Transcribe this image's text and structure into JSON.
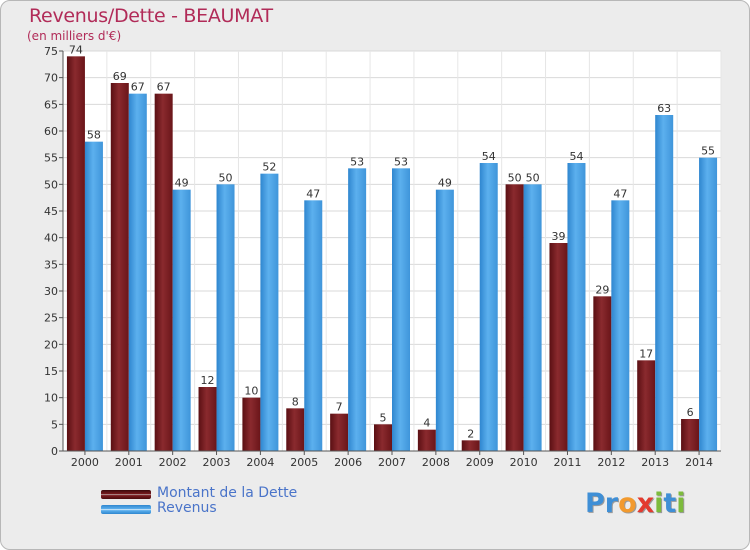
{
  "title": "Revenus/Dette - BEAUMAT",
  "subtitle": "(en milliers d'€)",
  "colors": {
    "dette": "#7b1a1e",
    "revenus": "#4a9fe0",
    "title": "#b12b58",
    "legend_text": "#4a74c9",
    "background": "#ececec"
  },
  "legend": {
    "items": [
      {
        "label": "Montant de la Dette",
        "color": "#7b1a1e"
      },
      {
        "label": "Revenus",
        "color": "#4a9fe0"
      }
    ]
  },
  "logo": {
    "text": "Proxiti",
    "letters": [
      {
        "ch": "P",
        "color": "#3f8fd6"
      },
      {
        "ch": "r",
        "color": "#3f8fd6"
      },
      {
        "ch": "o",
        "color": "#f29a2e"
      },
      {
        "ch": "x",
        "color": "#e33b2f"
      },
      {
        "ch": "i",
        "color": "#7dbb3c"
      },
      {
        "ch": "t",
        "color": "#3f8fd6"
      },
      {
        "ch": "i",
        "color": "#7dbb3c"
      }
    ]
  },
  "chart_data": {
    "type": "bar",
    "categories": [
      "2000",
      "2001",
      "2002",
      "2003",
      "2004",
      "2005",
      "2006",
      "2007",
      "2008",
      "2009",
      "2010",
      "2011",
      "2012",
      "2013",
      "2014"
    ],
    "series": [
      {
        "name": "Montant de la Dette",
        "values": [
          74,
          69,
          67,
          12,
          10,
          8,
          7,
          5,
          4,
          2,
          50,
          39,
          29,
          17,
          6
        ]
      },
      {
        "name": "Revenus",
        "values": [
          58,
          67,
          49,
          50,
          52,
          47,
          53,
          53,
          49,
          54,
          50,
          54,
          47,
          63,
          55
        ]
      }
    ],
    "title": "Revenus/Dette - BEAUMAT",
    "ylabel": "(en milliers d'€)",
    "ylim": [
      0,
      75
    ],
    "yticks": [
      0,
      5,
      10,
      15,
      20,
      25,
      30,
      35,
      40,
      45,
      50,
      55,
      60,
      65,
      70,
      75
    ],
    "grid": true,
    "legend_position": "bottom-left"
  }
}
